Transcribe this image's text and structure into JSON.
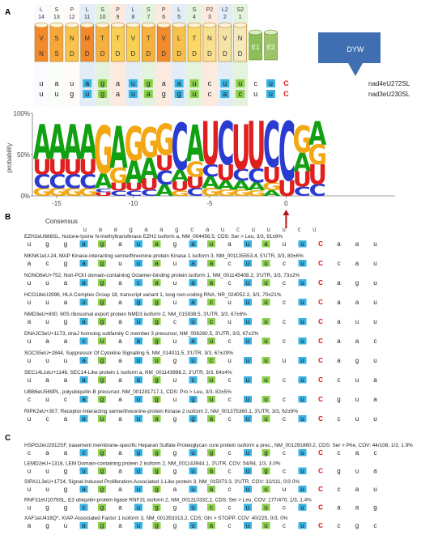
{
  "panels": [
    "A",
    "B",
    "C"
  ],
  "motif_order": [
    "L",
    "S",
    "P",
    "L",
    "S",
    "P",
    "L",
    "S",
    "P",
    "L",
    "S",
    "P2",
    "L2",
    "S2"
  ],
  "protein": {
    "units": [
      {
        "type": "L",
        "idx": "14",
        "aa1": "V",
        "aa2": "N",
        "color": "#f28a2c"
      },
      {
        "type": "S",
        "idx": "13",
        "aa1": "S",
        "aa2": "S",
        "color": "#f6a63a"
      },
      {
        "type": "P",
        "idx": "12",
        "aa1": "N",
        "aa2": "D",
        "color": "#f9c24a"
      },
      {
        "type": "L",
        "idx": "11",
        "aa1": "M",
        "aa2": "D",
        "color": "#f28a2c"
      },
      {
        "type": "S",
        "idx": "10",
        "aa1": "T",
        "aa2": "D",
        "color": "#f6b03e"
      },
      {
        "type": "P",
        "idx": "9",
        "aa1": "T",
        "aa2": "D",
        "color": "#f9cf55"
      },
      {
        "type": "L",
        "idx": "8",
        "aa1": "V",
        "aa2": "D",
        "color": "#f8cf52"
      },
      {
        "type": "S",
        "idx": "7",
        "aa1": "T",
        "aa2": "D",
        "color": "#f6b03e"
      },
      {
        "type": "P",
        "idx": "6",
        "aa1": "V",
        "aa2": "D",
        "color": "#f28a2c"
      },
      {
        "type": "L",
        "idx": "5",
        "aa1": "L",
        "aa2": "D",
        "color": "#f7c04a"
      },
      {
        "type": "S",
        "idx": "4",
        "aa1": "T",
        "aa2": "D",
        "color": "#fad766"
      },
      {
        "type": "P2",
        "idx": "3",
        "aa1": "N",
        "aa2": "D",
        "color": "#f8e08e"
      },
      {
        "type": "L2",
        "idx": "2",
        "aa1": "V",
        "aa2": "D",
        "color": "#f5e3a6"
      },
      {
        "type": "S2",
        "idx": "1",
        "aa1": "N",
        "aa2": "D",
        "color": "#f3e9bd"
      }
    ],
    "domains": [
      "E1",
      "E2",
      "DYW"
    ]
  },
  "target_rows": [
    {
      "bases": [
        "u",
        "a",
        "u",
        "a",
        "g",
        "a",
        "u",
        "g",
        "a",
        "a",
        "u",
        "c",
        "u",
        "u",
        "c",
        "u",
        "C"
      ],
      "name": "nad4eU272SL"
    },
    {
      "bases": [
        "u",
        "u",
        "g",
        "u",
        "g",
        "a",
        "u",
        "a",
        "g",
        "g",
        "u",
        "c",
        "a",
        "c",
        "u",
        "u",
        "C"
      ],
      "name": "nad3eU230SL"
    }
  ],
  "logo": {
    "ylabel": "probability",
    "yticks": [
      "100%",
      "50%",
      "0%"
    ],
    "xticks": [
      "-15",
      "-10",
      "-5",
      "0"
    ],
    "columns": [
      [
        [
          "A",
          0.45
        ],
        [
          "U",
          0.2
        ],
        [
          "C",
          0.18
        ],
        [
          "G",
          0.1
        ]
      ],
      [
        [
          "A",
          0.45
        ],
        [
          "U",
          0.2
        ],
        [
          "C",
          0.18
        ],
        [
          "G",
          0.1
        ]
      ],
      [
        [
          "A",
          0.45
        ],
        [
          "U",
          0.2
        ],
        [
          "C",
          0.18
        ],
        [
          "G",
          0.1
        ]
      ],
      [
        [
          "A",
          0.45
        ],
        [
          "U",
          0.2
        ],
        [
          "C",
          0.18
        ],
        [
          "G",
          0.1
        ]
      ],
      [
        [
          "A",
          0.2
        ],
        [
          "U",
          0.05
        ],
        [
          "G",
          0.62
        ],
        [
          "C",
          0.05
        ]
      ],
      [
        [
          "A",
          0.55
        ],
        [
          "G",
          0.2
        ],
        [
          "U",
          0.1
        ],
        [
          "C",
          0.07
        ]
      ],
      [
        [
          "A",
          0.3
        ],
        [
          "U",
          0.1
        ],
        [
          "G",
          0.45
        ],
        [
          "C",
          0.07
        ]
      ],
      [
        [
          "G",
          0.4
        ],
        [
          "A",
          0.28
        ],
        [
          "U",
          0.15
        ],
        [
          "C",
          0.08
        ]
      ],
      [
        [
          "G",
          0.4
        ],
        [
          "A",
          0.15
        ],
        [
          "U",
          0.2
        ],
        [
          "C",
          0.18
        ]
      ],
      [
        [
          "C",
          0.6
        ],
        [
          "A",
          0.15
        ],
        [
          "U",
          0.12
        ],
        [
          "G",
          0.07
        ]
      ],
      [
        [
          "A",
          0.48
        ],
        [
          "G",
          0.2
        ],
        [
          "U",
          0.15
        ],
        [
          "C",
          0.1
        ]
      ],
      [
        [
          "U",
          0.55
        ],
        [
          "A",
          0.15
        ],
        [
          "C",
          0.15
        ],
        [
          "G",
          0.1
        ]
      ],
      [
        [
          "C",
          0.55
        ],
        [
          "U",
          0.2
        ],
        [
          "A",
          0.12
        ],
        [
          "G",
          0.08
        ]
      ],
      [
        [
          "U",
          0.58
        ],
        [
          "C",
          0.15
        ],
        [
          "A",
          0.12
        ],
        [
          "G",
          0.08
        ]
      ],
      [
        [
          "U",
          0.6
        ],
        [
          "C",
          0.18
        ],
        [
          "A",
          0.1
        ],
        [
          "G",
          0.07
        ]
      ],
      [
        [
          "C",
          0.58
        ],
        [
          "U",
          0.2
        ],
        [
          "G",
          0.1
        ],
        [
          "A",
          0.07
        ]
      ],
      [
        [
          "U",
          0.2
        ],
        [
          "C",
          0.75
        ]
      ],
      [
        [
          "G",
          0.35
        ],
        [
          "A",
          0.25
        ],
        [
          "U",
          0.2
        ],
        [
          "C",
          0.12
        ]
      ],
      [
        [
          "A",
          0.3
        ],
        [
          "U",
          0.25
        ],
        [
          "G",
          0.25
        ],
        [
          "C",
          0.15
        ]
      ]
    ]
  },
  "consensus": {
    "label": "Consensus",
    "bases": [
      "u",
      "a",
      "a",
      "g",
      "a",
      "a",
      "g",
      "c",
      "a",
      "u",
      "c",
      "u",
      "u",
      "u",
      "c",
      "u"
    ]
  },
  "b_entries": [
    {
      "label": "EZH2eU686SL, histone-lysine N-methyltransferase EZH2 isoform a, NM_004456.5, CDS: Ser > Leu, 3/3, 91±9%",
      "bases": [
        "u",
        "g",
        "g",
        "a",
        "g",
        "a",
        "u",
        "a",
        "g",
        "a",
        "u",
        "a",
        "u",
        "a",
        "u",
        "u",
        "C",
        "a",
        "a",
        "u"
      ]
    },
    {
      "label": "MKNK1eU-24, MAP Kinase-interacting serine/threonine-protein Kinase 1 isoform 3, NM_001135553.4, 5'UTR, 3/3, 80±6%",
      "bases": [
        "a",
        "c",
        "g",
        "a",
        "g",
        "u",
        "u",
        "a",
        "u",
        "a",
        "a",
        "c",
        "u",
        "u",
        "c",
        "u",
        "C",
        "c",
        "a",
        "u"
      ]
    },
    {
      "label": "NONO6eU+752, Non-POU domain-containing Octamer-binding protein isoform 1, NM_001145408.2, 3'UTR, 3/3, 73±2%",
      "bases": [
        "u",
        "u",
        "a",
        "a",
        "g",
        "a",
        "c",
        "a",
        "u",
        "a",
        "a",
        "c",
        "u",
        "u",
        "c",
        "u",
        "C",
        "a",
        "g",
        "u"
      ]
    },
    {
      "label": "HCG18eU2996, HLA Complex Group 18, transcript variant 1, long non-coding RNA, NR_024052.2, 3/3, 70±21%",
      "bases": [
        "u",
        "u",
        "a",
        "u",
        "g",
        "a",
        "g",
        "g",
        "u",
        "a",
        "c",
        "u",
        "u",
        "u",
        "c",
        "u",
        "C",
        "a",
        "a",
        "u"
      ]
    },
    {
      "label": "NMD3eU+800, 60S ribosomal export protein NMD3 isoform 2, NM_015938.5, 3'UTR, 3/3, 67±6%",
      "bases": [
        "a",
        "u",
        "g",
        "a",
        "g",
        "a",
        "u",
        "g",
        "c",
        "u",
        "c",
        "u",
        "u",
        "u",
        "c",
        "u",
        "C",
        "a",
        "u",
        "u"
      ]
    },
    {
      "label": "DNAJC3eU+1173, dnaJ homolog subfamily C member 3 precursor, NM_006260.5, 3'UTR, 3/3, 67±2%",
      "bases": [
        "u",
        "a",
        "a",
        "c",
        "u",
        "a",
        "a",
        "g",
        "u",
        "a",
        "u",
        "c",
        "u",
        "u",
        "c",
        "u",
        "C",
        "a",
        "a",
        "c"
      ]
    },
    {
      "label": "SOCS5eU+2844, Suppressor Of Cytokine Signalling 5, NM_014011.5, 3'UTR, 3/3, 67±29%",
      "bases": [
        "u",
        "u",
        "u",
        "a",
        "g",
        "a",
        "u",
        "u",
        "g",
        "u",
        "c",
        "u",
        "u",
        "u",
        "u",
        "u",
        "C",
        "a",
        "g",
        "u"
      ]
    },
    {
      "label": "SEC14L1eU+1146, SEC14-Like protein 1 isoform a, NM_001143998.2, 3'UTR, 3/3, 64±4%",
      "bases": [
        "u",
        "a",
        "a",
        "a",
        "g",
        "a",
        "a",
        "g",
        "u",
        "c",
        "u",
        "c",
        "u",
        "u",
        "c",
        "u",
        "C",
        "c",
        "u",
        "a"
      ]
    },
    {
      "label": "UBB6eU569PL, polyubiquitin-B precursor, NM_001281717.1, CDS: Pro > Leu, 3/3, 82±5%",
      "bases": [
        "c",
        "u",
        "c",
        "a",
        "g",
        "a",
        "u",
        "g",
        "u",
        "g",
        "u",
        "c",
        "u",
        "u",
        "c",
        "u",
        "C",
        "g",
        "u",
        "a"
      ]
    },
    {
      "label": "RIPK2eU+307, Receptor-Interacting serine/threonine-protein Kinase 2 isoform 2, NM_001375360.1, 3'UTR, 3/3, 62±9%",
      "bases": [
        "u",
        "c",
        "a",
        "a",
        "u",
        "a",
        "u",
        "a",
        "g",
        "g",
        "a",
        "c",
        "u",
        "u",
        "c",
        "u",
        "C",
        "c",
        "u",
        "u"
      ]
    }
  ],
  "c_entries": [
    {
      "label": "HSPG2eU2912SF, basement membrane-specific Heparan Sulfate Proteoglycan core protein isoform a prec., NM_001291860.2, CDS: Ser > Phe, COV: 44/108, 1/3, 1.9%",
      "bases": [
        "c",
        "a",
        "a",
        "c",
        "g",
        "a",
        "g",
        "g",
        "g",
        "u",
        "g",
        "c",
        "u",
        "g",
        "c",
        "u",
        "C",
        "c",
        "a",
        "c"
      ]
    },
    {
      "label": "LEMD2eU+1318, LEM Domain-containing protein 2 isoform 2, NM_001143944.1, 3'UTR, COV: 54/94, 1/3, 3.0%",
      "bases": [
        "u",
        "u",
        "g",
        "u",
        "g",
        "a",
        "u",
        "g",
        "g",
        "u",
        "a",
        "c",
        "u",
        "g",
        "c",
        "u",
        "C",
        "g",
        "u",
        "a"
      ]
    },
    {
      "label": "SIPA1L3eU+1724, Signal-Induced Proliferation-Associated 1-Like protein 3, NM_015073.3, 3'UTR, COV: 32/111, 0/3 0%",
      "bases": [
        "u",
        "u",
        "g",
        "a",
        "g",
        "a",
        "u",
        "g",
        "a",
        "u",
        "a",
        "c",
        "u",
        "u",
        "u",
        "u",
        "C",
        "c",
        "a",
        "u"
      ]
    },
    {
      "label": "RNF31eU1076SL, E3 ubiquitin-protein ligase RNF31 isoform 2, NM_001310332.2, CDS: Ser > Leu, COV: 177/470, 1/3, 1.4%",
      "bases": [
        "u",
        "g",
        "g",
        "c",
        "g",
        "a",
        "u",
        "g",
        "g",
        "u",
        "c",
        "c",
        "u",
        "u",
        "c",
        "u",
        "C",
        "a",
        "a",
        "g"
      ]
    },
    {
      "label": "XAF1eU418Q*, XIAP-Associated Factor 1 isoform 3, NM_001353313.2, CDS: Gln > STOPP, COV: 40/225, 0/3, 0%",
      "bases": [
        "a",
        "g",
        "u",
        "a",
        "g",
        "a",
        "u",
        "g",
        "g",
        "u",
        "a",
        "c",
        "u",
        "u",
        "c",
        "u",
        "C",
        "c",
        "g",
        "c"
      ]
    }
  ],
  "colors": {
    "A": "#11a011",
    "C": "#2a3bd1",
    "G": "#f3a712",
    "U": "#e01f1f",
    "green_box": "#8ccf4d",
    "blue_box": "#3bb3e3",
    "edit_c": "#d11",
    "arrow": "#b01818"
  }
}
